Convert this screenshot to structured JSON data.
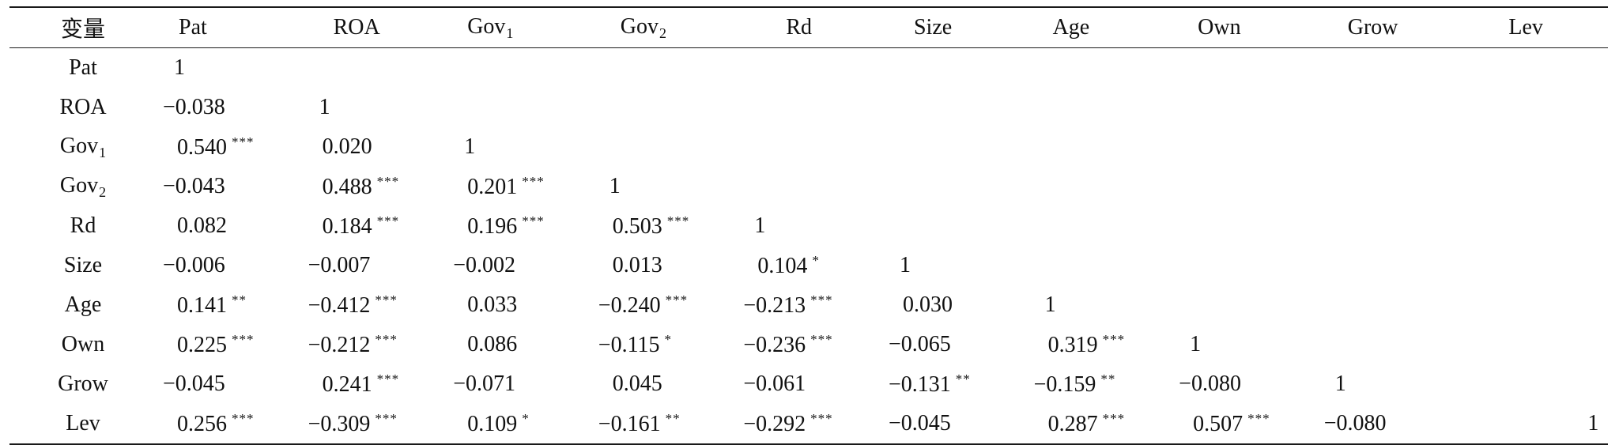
{
  "table": {
    "corner_label": "变量",
    "columns": [
      {
        "base": "Pat",
        "sub": ""
      },
      {
        "base": "ROA",
        "sub": ""
      },
      {
        "base": "Gov",
        "sub": "1"
      },
      {
        "base": "Gov",
        "sub": "2"
      },
      {
        "base": "Rd",
        "sub": ""
      },
      {
        "base": "Size",
        "sub": ""
      },
      {
        "base": "Age",
        "sub": ""
      },
      {
        "base": "Own",
        "sub": ""
      },
      {
        "base": "Grow",
        "sub": ""
      },
      {
        "base": "Lev",
        "sub": ""
      }
    ],
    "rows": [
      {
        "label": {
          "base": "Pat",
          "sub": ""
        },
        "cells": [
          {
            "v": "1",
            "s": ""
          }
        ]
      },
      {
        "label": {
          "base": "ROA",
          "sub": ""
        },
        "cells": [
          {
            "v": "−0.038",
            "s": ""
          },
          {
            "v": "1",
            "s": ""
          }
        ]
      },
      {
        "label": {
          "base": "Gov",
          "sub": "1"
        },
        "cells": [
          {
            "v": "0.540",
            "s": "***"
          },
          {
            "v": "0.020",
            "s": ""
          },
          {
            "v": "1",
            "s": ""
          }
        ]
      },
      {
        "label": {
          "base": "Gov",
          "sub": "2"
        },
        "cells": [
          {
            "v": "−0.043",
            "s": ""
          },
          {
            "v": "0.488",
            "s": "***"
          },
          {
            "v": "0.201",
            "s": "***"
          },
          {
            "v": "1",
            "s": ""
          }
        ]
      },
      {
        "label": {
          "base": "Rd",
          "sub": ""
        },
        "cells": [
          {
            "v": "0.082",
            "s": ""
          },
          {
            "v": "0.184",
            "s": "***"
          },
          {
            "v": "0.196",
            "s": "***"
          },
          {
            "v": "0.503",
            "s": "***"
          },
          {
            "v": "1",
            "s": ""
          }
        ]
      },
      {
        "label": {
          "base": "Size",
          "sub": ""
        },
        "cells": [
          {
            "v": "−0.006",
            "s": ""
          },
          {
            "v": "−0.007",
            "s": ""
          },
          {
            "v": "−0.002",
            "s": ""
          },
          {
            "v": "0.013",
            "s": ""
          },
          {
            "v": "0.104",
            "s": "*"
          },
          {
            "v": "1",
            "s": ""
          }
        ]
      },
      {
        "label": {
          "base": "Age",
          "sub": ""
        },
        "cells": [
          {
            "v": "0.141",
            "s": "**"
          },
          {
            "v": "−0.412",
            "s": "***"
          },
          {
            "v": "0.033",
            "s": ""
          },
          {
            "v": "−0.240",
            "s": "***"
          },
          {
            "v": "−0.213",
            "s": "***"
          },
          {
            "v": "0.030",
            "s": ""
          },
          {
            "v": "1",
            "s": ""
          }
        ]
      },
      {
        "label": {
          "base": "Own",
          "sub": ""
        },
        "cells": [
          {
            "v": "0.225",
            "s": "***"
          },
          {
            "v": "−0.212",
            "s": "***"
          },
          {
            "v": "0.086",
            "s": ""
          },
          {
            "v": "−0.115",
            "s": "*"
          },
          {
            "v": "−0.236",
            "s": "***"
          },
          {
            "v": "−0.065",
            "s": ""
          },
          {
            "v": "0.319",
            "s": "***"
          },
          {
            "v": "1",
            "s": ""
          }
        ]
      },
      {
        "label": {
          "base": "Grow",
          "sub": ""
        },
        "cells": [
          {
            "v": "−0.045",
            "s": ""
          },
          {
            "v": "0.241",
            "s": "***"
          },
          {
            "v": "−0.071",
            "s": ""
          },
          {
            "v": "0.045",
            "s": ""
          },
          {
            "v": "−0.061",
            "s": ""
          },
          {
            "v": "−0.131",
            "s": "**"
          },
          {
            "v": "−0.159",
            "s": "**"
          },
          {
            "v": "−0.080",
            "s": ""
          },
          {
            "v": "1",
            "s": ""
          }
        ]
      },
      {
        "label": {
          "base": "Lev",
          "sub": ""
        },
        "cells": [
          {
            "v": "0.256",
            "s": "***"
          },
          {
            "v": "−0.309",
            "s": "***"
          },
          {
            "v": "0.109",
            "s": "*"
          },
          {
            "v": "−0.161",
            "s": "**"
          },
          {
            "v": "−0.292",
            "s": "***"
          },
          {
            "v": "−0.045",
            "s": ""
          },
          {
            "v": "0.287",
            "s": "***"
          },
          {
            "v": "0.507",
            "s": "***"
          },
          {
            "v": "−0.080",
            "s": ""
          },
          {
            "v": "1",
            "s": ""
          }
        ]
      }
    ]
  }
}
